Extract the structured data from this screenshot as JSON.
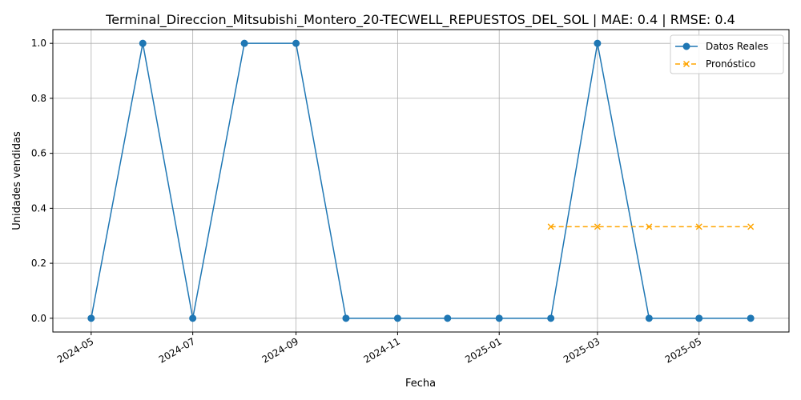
{
  "chart_data": {
    "type": "line",
    "title": "Terminal_Direccion_Mitsubishi_Montero_20-TECWELL_REPUESTOS_DEL_SOL | MAE: 0.4 | RMSE: 0.4",
    "xlabel": "Fecha",
    "ylabel": "Unidades vendidas",
    "xlim": [
      "2024-04-08",
      "2025-06-24"
    ],
    "ylim": [
      -0.05,
      1.05
    ],
    "x_ticks": [
      "2024-05",
      "2024-07",
      "2024-09",
      "2024-11",
      "2025-01",
      "2025-03",
      "2025-05"
    ],
    "x_tick_dates": [
      "2024-05-01",
      "2024-07-01",
      "2024-09-01",
      "2024-11-01",
      "2025-01-01",
      "2025-03-01",
      "2025-05-01"
    ],
    "y_ticks": [
      "0.0",
      "0.2",
      "0.4",
      "0.6",
      "0.8",
      "1.0"
    ],
    "y_tick_values": [
      0.0,
      0.2,
      0.4,
      0.6,
      0.8,
      1.0
    ],
    "grid": true,
    "legend_position": "top-right",
    "series": [
      {
        "name": "Datos Reales",
        "color": "#1f77b4",
        "style": "solid",
        "marker": "circle",
        "x": [
          "2024-05-01",
          "2024-06-01",
          "2024-07-01",
          "2024-08-01",
          "2024-09-01",
          "2024-10-01",
          "2024-11-01",
          "2024-12-01",
          "2025-01-01",
          "2025-02-01",
          "2025-03-01",
          "2025-04-01",
          "2025-05-01",
          "2025-06-01"
        ],
        "values": [
          0,
          1,
          0,
          1,
          1,
          0,
          0,
          0,
          0,
          0,
          1,
          0,
          0,
          0
        ]
      },
      {
        "name": "Pronóstico",
        "color": "#ffa500",
        "style": "dashed",
        "marker": "x",
        "x": [
          "2025-02-01",
          "2025-03-01",
          "2025-04-01",
          "2025-05-01",
          "2025-06-01"
        ],
        "values": [
          0.333,
          0.333,
          0.333,
          0.333,
          0.333
        ]
      }
    ]
  }
}
